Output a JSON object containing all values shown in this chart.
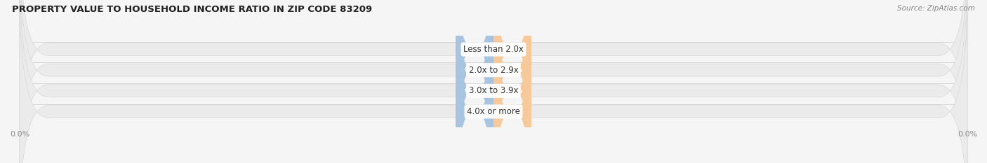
{
  "title": "PROPERTY VALUE TO HOUSEHOLD INCOME RATIO IN ZIP CODE 83209",
  "source": "Source: ZipAtlas.com",
  "categories": [
    "Less than 2.0x",
    "2.0x to 2.9x",
    "3.0x to 3.9x",
    "4.0x or more"
  ],
  "without_mortgage": [
    0.0,
    0.0,
    0.0,
    0.0
  ],
  "with_mortgage": [
    0.0,
    0.0,
    0.0,
    0.0
  ],
  "blue_color": "#a8c4e0",
  "orange_color": "#f5c99a",
  "bar_bg_color": "#ebebeb",
  "bar_bg_edge": "#d8d8d8",
  "title_color": "#222222",
  "label_color": "#555555",
  "axis_label_color": "#888888",
  "fig_bg_color": "#f5f5f5",
  "xlim": [
    -100,
    100
  ],
  "bar_height": 0.6,
  "min_bar_width": 8.0,
  "title_fontsize": 9.5,
  "source_fontsize": 7.5,
  "tick_fontsize": 8,
  "legend_fontsize": 8,
  "category_fontsize": 8.5,
  "value_fontsize": 7.5
}
